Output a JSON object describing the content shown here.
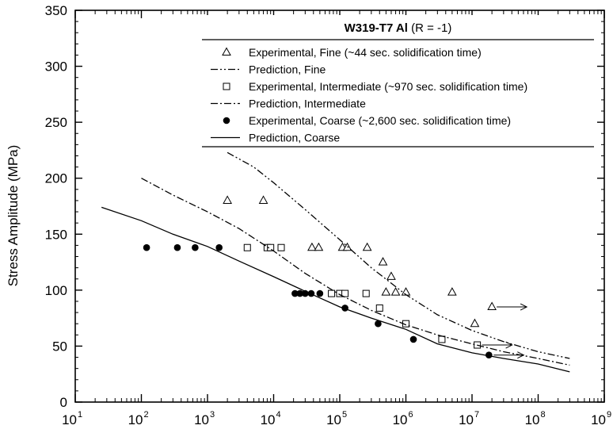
{
  "chart_data": {
    "type": "scatter",
    "title": "W319-T7 Al",
    "title_note": "(R = -1)",
    "xlabel": "",
    "ylabel": "Stress Amplitude (MPa)",
    "xscale": "log",
    "xlim": [
      10,
      1000000000
    ],
    "ylim": [
      0,
      350
    ],
    "x_ticks": [
      {
        "value": 10,
        "base": "10",
        "exp": "1"
      },
      {
        "value": 100,
        "base": "10",
        "exp": "2"
      },
      {
        "value": 1000,
        "base": "10",
        "exp": "3"
      },
      {
        "value": 10000,
        "base": "10",
        "exp": "4"
      },
      {
        "value": 100000,
        "base": "10",
        "exp": "5"
      },
      {
        "value": 1000000,
        "base": "10",
        "exp": "6"
      },
      {
        "value": 10000000,
        "base": "10",
        "exp": "7"
      },
      {
        "value": 100000000,
        "base": "10",
        "exp": "8"
      },
      {
        "value": 1000000000,
        "base": "10",
        "exp": "9"
      }
    ],
    "y_ticks": [
      "0",
      "50",
      "100",
      "150",
      "200",
      "250",
      "300",
      "350"
    ],
    "grid": false,
    "legend_position": "top-right",
    "series": [
      {
        "name": "Experimental, Fine (~44 sec. solidification time)",
        "kind": "scatter",
        "marker": "triangle-open",
        "points": [
          [
            2000,
            180
          ],
          [
            7000,
            180
          ],
          [
            38000,
            138
          ],
          [
            48000,
            138
          ],
          [
            110000,
            138
          ],
          [
            130000,
            138
          ],
          [
            260000,
            138
          ],
          [
            450000,
            125
          ],
          [
            600000,
            112
          ],
          [
            500000,
            98
          ],
          [
            700000,
            98
          ],
          [
            1000000,
            98
          ],
          [
            5000000,
            98
          ],
          [
            11000000,
            70
          ],
          [
            20000000,
            85
          ]
        ],
        "runout": [
          [
            20000000,
            85
          ]
        ]
      },
      {
        "name": "Prediction, Fine",
        "kind": "line",
        "dash": "dash-dot-dot",
        "points": [
          [
            2000,
            223
          ],
          [
            5000,
            210
          ],
          [
            10000,
            196
          ],
          [
            30000,
            172
          ],
          [
            100000,
            145
          ],
          [
            300000,
            120
          ],
          [
            1000000,
            96
          ],
          [
            3000000,
            78
          ],
          [
            10000000,
            64
          ],
          [
            30000000,
            54
          ],
          [
            100000000,
            45
          ],
          [
            300000000,
            39
          ]
        ]
      },
      {
        "name": "Experimental, Intermediate (~970 sec. solidification time)",
        "kind": "scatter",
        "marker": "square-open",
        "points": [
          [
            4000,
            138
          ],
          [
            8000,
            138
          ],
          [
            9000,
            138
          ],
          [
            13000,
            138
          ],
          [
            75000,
            97
          ],
          [
            100000,
            97
          ],
          [
            120000,
            97
          ],
          [
            250000,
            97
          ],
          [
            400000,
            84
          ],
          [
            1000000,
            70
          ],
          [
            3500000,
            56
          ],
          [
            12000000,
            51
          ]
        ],
        "runout": [
          [
            12000000,
            51
          ]
        ]
      },
      {
        "name": "Prediction, Intermediate",
        "kind": "line",
        "dash": "dash-dot",
        "points": [
          [
            100,
            200
          ],
          [
            300,
            185
          ],
          [
            1000,
            170
          ],
          [
            3000,
            155
          ],
          [
            10000,
            135
          ],
          [
            30000,
            115
          ],
          [
            100000,
            96
          ],
          [
            300000,
            82
          ],
          [
            1000000,
            69
          ],
          [
            3000000,
            60
          ],
          [
            10000000,
            52
          ],
          [
            30000000,
            45
          ],
          [
            100000000,
            39
          ],
          [
            300000000,
            33
          ]
        ]
      },
      {
        "name": "Experimental, Coarse (~2,600 sec. solidification time)",
        "kind": "scatter",
        "marker": "circle-filled",
        "points": [
          [
            120,
            138
          ],
          [
            350,
            138
          ],
          [
            650,
            138
          ],
          [
            1500,
            138
          ],
          [
            21000,
            97
          ],
          [
            25000,
            97
          ],
          [
            30000,
            97
          ],
          [
            37000,
            97
          ],
          [
            50000,
            97
          ],
          [
            120000,
            84
          ],
          [
            380000,
            70
          ],
          [
            1300000,
            56
          ],
          [
            18000000,
            42
          ]
        ],
        "runout": [
          [
            18000000,
            42
          ]
        ]
      },
      {
        "name": "Prediction, Coarse",
        "kind": "line",
        "dash": "solid",
        "points": [
          [
            25,
            174
          ],
          [
            100,
            162
          ],
          [
            300,
            150
          ],
          [
            1000,
            139
          ],
          [
            3000,
            126
          ],
          [
            10000,
            112
          ],
          [
            30000,
            99
          ],
          [
            100000,
            85
          ],
          [
            300000,
            75
          ],
          [
            1000000,
            65
          ],
          [
            3000000,
            52
          ],
          [
            10000000,
            44
          ],
          [
            30000000,
            39
          ],
          [
            100000000,
            34
          ],
          [
            300000000,
            27
          ]
        ]
      }
    ]
  }
}
